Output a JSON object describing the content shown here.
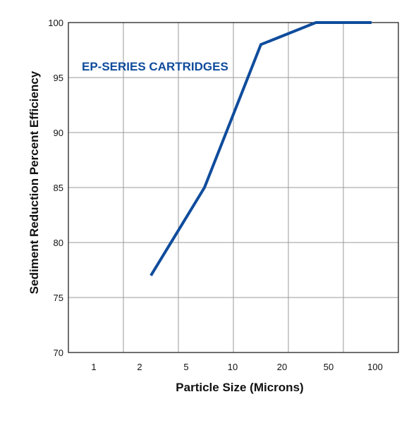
{
  "chart_data": {
    "type": "line",
    "xlabel": "Particle Size (Microns)",
    "ylabel": "Sediment Reduction Percent Efficiency",
    "x_ticks": [
      "1",
      "2",
      "5",
      "10",
      "20",
      "50",
      "100"
    ],
    "y_ticks": [
      "70",
      "75",
      "80",
      "85",
      "90",
      "95",
      "100"
    ],
    "ylim": [
      70,
      100
    ],
    "grid": true,
    "series": [
      {
        "name": "EP-SERIES CARTRIDGES",
        "color": "#0f4c9c",
        "points": [
          {
            "x": "2",
            "y": 77
          },
          {
            "x": "5",
            "y": 85
          },
          {
            "x": "10",
            "y": 98
          },
          {
            "x": "20",
            "y": 100
          },
          {
            "x": "50",
            "y": 100
          }
        ]
      }
    ]
  }
}
